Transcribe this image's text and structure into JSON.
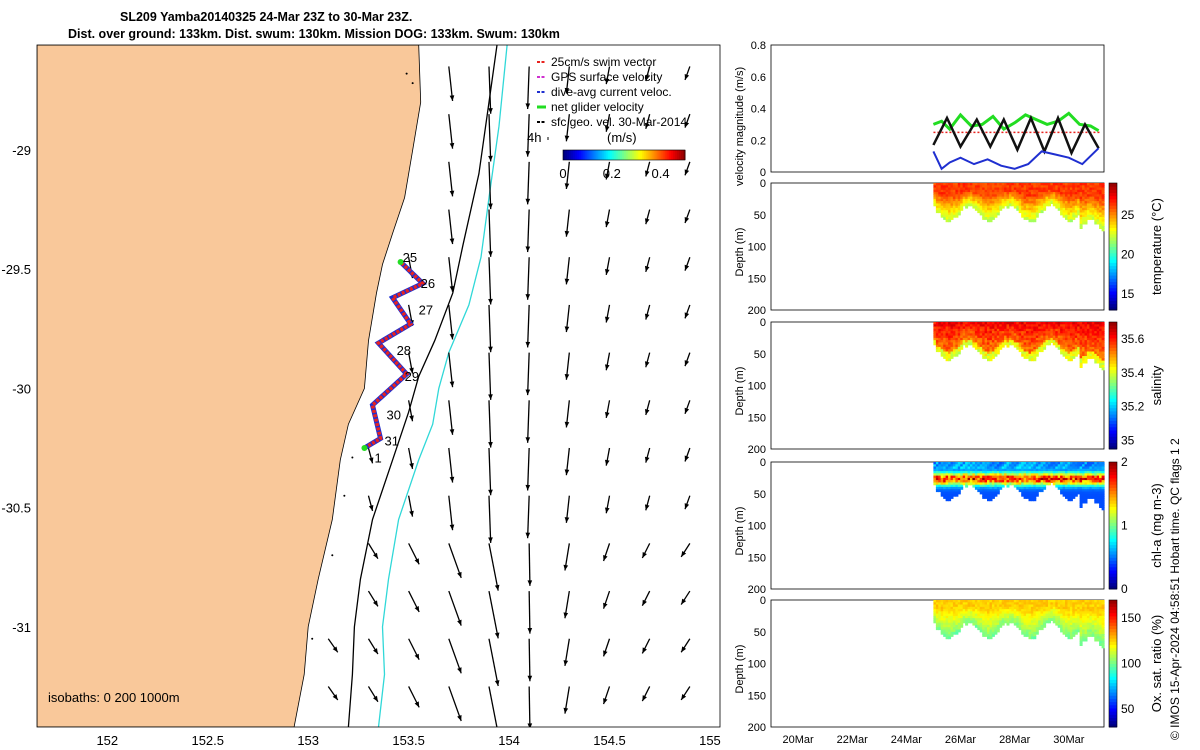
{
  "title_line1": "SL209 Yamba20140325 24-Mar 23Z to 30-Mar 23Z.",
  "title_line2": "Dist. over ground: 133km. Dist. swum: 130km. Mission DOG: 133km. Swum: 130km",
  "side_label": "© IMOS 15-Apr-2024 04:58:51 Hobart time. QC flags 1  2",
  "colors": {
    "land": "#f9c89a",
    "track": "#e8231f",
    "dive": "#1f2fd0",
    "gps": "#d030d0",
    "net": "#22dd22",
    "isobath200": "#30d8d8",
    "vel": "#000000"
  },
  "chart_data": [
    {
      "type": "map",
      "name": "track-map",
      "xlabel": "",
      "ylabel": "",
      "xlim": [
        151.65,
        155.05
      ],
      "ylim": [
        -31.42,
        -28.56
      ],
      "x_ticks": [
        "152",
        "152.5",
        "153",
        "153.5",
        "154",
        "154.5",
        "155"
      ],
      "y_ticks": [
        "-29",
        "-29.5",
        "-30",
        "-30.5",
        "-31"
      ],
      "legend": {
        "position": "top-right",
        "entries": [
          "25cm/s swim vector",
          "GPS surface velocity",
          "dive-avg current veloc.",
          "net glider velocity",
          "sfc geo. vel. 30-Mar-2014"
        ]
      },
      "colorbar": {
        "label": "(m/s)",
        "ticks": [
          "0",
          "0.2",
          "0.4"
        ],
        "range": [
          0,
          0.5
        ]
      },
      "scale_label": "4h",
      "isobath_label": "isobaths: 0   200  1000m",
      "track": [
        {
          "lon": 153.28,
          "lat": -30.25
        },
        {
          "lon": 153.36,
          "lat": -30.21
        },
        {
          "lon": 153.32,
          "lat": -30.07
        },
        {
          "lon": 153.49,
          "lat": -29.94
        },
        {
          "lon": 153.35,
          "lat": -29.81
        },
        {
          "lon": 153.51,
          "lat": -29.73
        },
        {
          "lon": 153.42,
          "lat": -29.62
        },
        {
          "lon": 153.57,
          "lat": -29.56
        },
        {
          "lon": 153.46,
          "lat": -29.47
        }
      ],
      "day_labels": [
        {
          "label": "1",
          "lon": 153.33,
          "lat": -30.31
        },
        {
          "label": "31",
          "lon": 153.38,
          "lat": -30.24
        },
        {
          "label": "30",
          "lon": 153.39,
          "lat": -30.13
        },
        {
          "label": "29",
          "lon": 153.48,
          "lat": -29.97
        },
        {
          "label": "28",
          "lon": 153.44,
          "lat": -29.86
        },
        {
          "label": "27",
          "lon": 153.55,
          "lat": -29.69
        },
        {
          "label": "26",
          "lon": 153.56,
          "lat": -29.58
        },
        {
          "label": "25",
          "lon": 153.47,
          "lat": -29.47
        }
      ]
    },
    {
      "type": "line",
      "name": "velocity-magnitude",
      "ylabel": "velocity magnitude (m/s)",
      "ylim": [
        0,
        0.8
      ],
      "y_ticks": [
        "0",
        "0.2",
        "0.4",
        "0.6",
        "0.8"
      ],
      "x_range_days": [
        19,
        31.3
      ],
      "series": [
        {
          "name": "net glider velocity",
          "x": [
            25,
            25.3,
            25.6,
            26,
            26.4,
            26.8,
            27.2,
            27.6,
            28,
            28.4,
            28.8,
            29.2,
            29.6,
            30,
            30.4,
            30.8,
            31.1
          ],
          "values": [
            0.3,
            0.32,
            0.27,
            0.36,
            0.29,
            0.3,
            0.35,
            0.27,
            0.31,
            0.36,
            0.33,
            0.3,
            0.32,
            0.37,
            0.3,
            0.29,
            0.26
          ]
        },
        {
          "name": "sfc geo. vel.",
          "x": [
            25,
            25.5,
            26,
            26.6,
            27.1,
            27.6,
            28.1,
            28.6,
            29.1,
            29.6,
            30.1,
            30.6,
            31.1
          ],
          "values": [
            0.17,
            0.34,
            0.16,
            0.33,
            0.16,
            0.33,
            0.14,
            0.34,
            0.13,
            0.34,
            0.12,
            0.3,
            0.15
          ]
        },
        {
          "name": "dive-avg current veloc.",
          "x": [
            25,
            25.3,
            25.6,
            26,
            26.5,
            27,
            27.5,
            28,
            28.5,
            29,
            29.5,
            30,
            30.5,
            31.1
          ],
          "values": [
            0.13,
            0.02,
            0.06,
            0.09,
            0.05,
            0.08,
            0.04,
            0.02,
            0.05,
            0.13,
            0.11,
            0.09,
            0.05,
            0.15
          ]
        }
      ],
      "swim_speed": 0.25
    },
    {
      "type": "heatmap",
      "name": "temperature",
      "ylabel": "Depth (m)",
      "cblabel": "temperature (°C)",
      "ylim": [
        0,
        200
      ],
      "y_ticks": [
        "0",
        "50",
        "100",
        "150",
        "200"
      ],
      "cb_ticks": [
        "15",
        "20",
        "25"
      ],
      "cb_range": [
        13,
        29
      ],
      "surface_value": 25.5,
      "deep_value": 20,
      "data_x": [
        25,
        31.3
      ],
      "max_depth": 90
    },
    {
      "type": "heatmap",
      "name": "salinity",
      "ylabel": "Depth (m)",
      "cblabel": "salinity",
      "ylim": [
        0,
        200
      ],
      "y_ticks": [
        "0",
        "50",
        "100",
        "150",
        "200"
      ],
      "cb_ticks": [
        "35",
        "35.2",
        "35.4",
        "35.6"
      ],
      "cb_range": [
        34.95,
        35.7
      ],
      "surface_value": 35.55,
      "deep_value": 35.5,
      "data_x": [
        25,
        31.3
      ],
      "max_depth": 90
    },
    {
      "type": "heatmap",
      "name": "chl-a",
      "ylabel": "Depth (m)",
      "cblabel": "chl-a (mg m-3)",
      "ylim": [
        0,
        200
      ],
      "y_ticks": [
        "0",
        "50",
        "100",
        "150",
        "200"
      ],
      "cb_ticks": [
        "0",
        "1",
        "2"
      ],
      "cb_range": [
        0,
        2
      ],
      "surface_value": 0.3,
      "deep_value": 0.6,
      "data_x": [
        25,
        31.3
      ],
      "max_depth": 90
    },
    {
      "type": "heatmap",
      "name": "oxygen-saturation",
      "ylabel": "Depth (m)",
      "cblabel": "Ox. sat. ratio (%)",
      "ylim": [
        0,
        200
      ],
      "y_ticks": [
        "0",
        "50",
        "100",
        "150",
        "200"
      ],
      "cb_ticks": [
        "50",
        "100",
        "150"
      ],
      "cb_range": [
        30,
        170
      ],
      "surface_value": 105,
      "deep_value": 90,
      "data_x": [
        25,
        31.3
      ],
      "max_depth": 90,
      "x_ticks": [
        "20Mar",
        "22Mar",
        "24Mar",
        "26Mar",
        "28Mar",
        "30Mar"
      ]
    }
  ]
}
